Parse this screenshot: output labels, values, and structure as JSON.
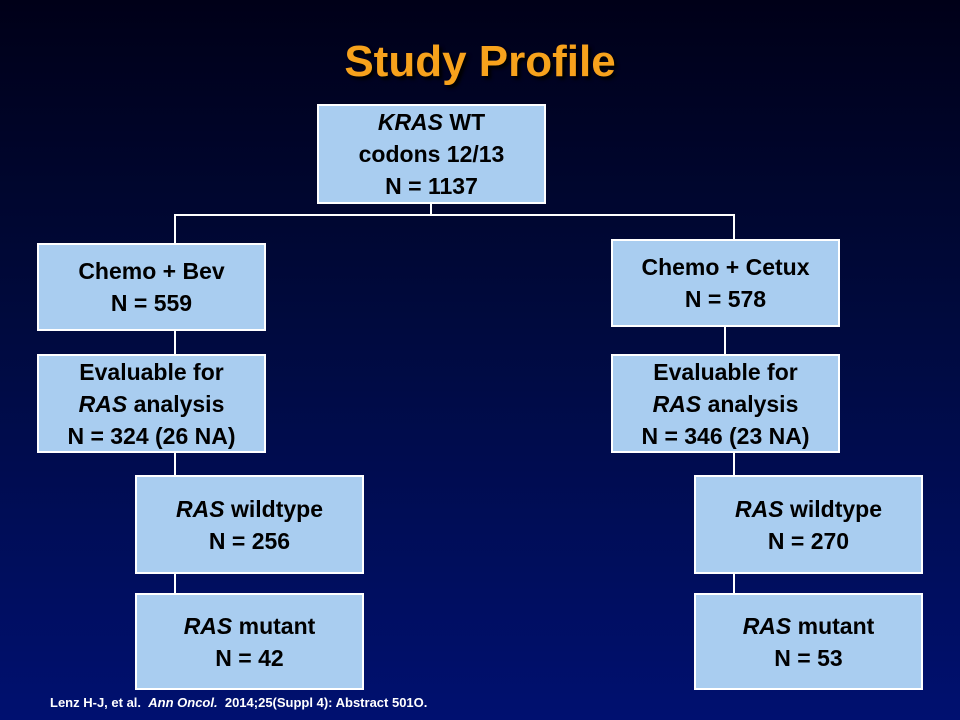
{
  "title": "Study Profile",
  "colors": {
    "title": "#f7a21c",
    "node_fill": "#a9cdf0",
    "background": "#000a3e"
  },
  "nodes": {
    "root": {
      "l1_italic": "KRAS",
      "l1_rest": " WT",
      "l2": "codons 12/13",
      "l3": "N = 1137"
    },
    "bev": {
      "l1": "Chemo + Bev",
      "l2": "N = 559"
    },
    "cetux": {
      "l1": "Chemo + Cetux",
      "l2": "N = 578"
    },
    "eval_bev": {
      "l1": "Evaluable for",
      "l2_italic": "RAS",
      "l2_rest": " analysis",
      "l3": "N = 324 (26 NA)"
    },
    "eval_cetux": {
      "l1": "Evaluable for",
      "l2_italic": "RAS",
      "l2_rest": " analysis",
      "l3": "N = 346 (23 NA)"
    },
    "wt_bev": {
      "l1_italic": "RAS",
      "l1_rest": " wildtype",
      "l2": "N = 256"
    },
    "wt_cetux": {
      "l1_italic": "RAS",
      "l1_rest": " wildtype",
      "l2": "N = 270"
    },
    "mut_bev": {
      "l1_italic": "RAS",
      "l1_rest": " mutant",
      "l2": "N = 42"
    },
    "mut_cetux": {
      "l1_italic": "RAS",
      "l1_rest": " mutant",
      "l2": "N = 53"
    }
  },
  "footer": {
    "authors": "Lenz H-J, et al.",
    "journal": "Ann Oncol.",
    "details": "2014;25(Suppl 4): Abstract 501O."
  }
}
